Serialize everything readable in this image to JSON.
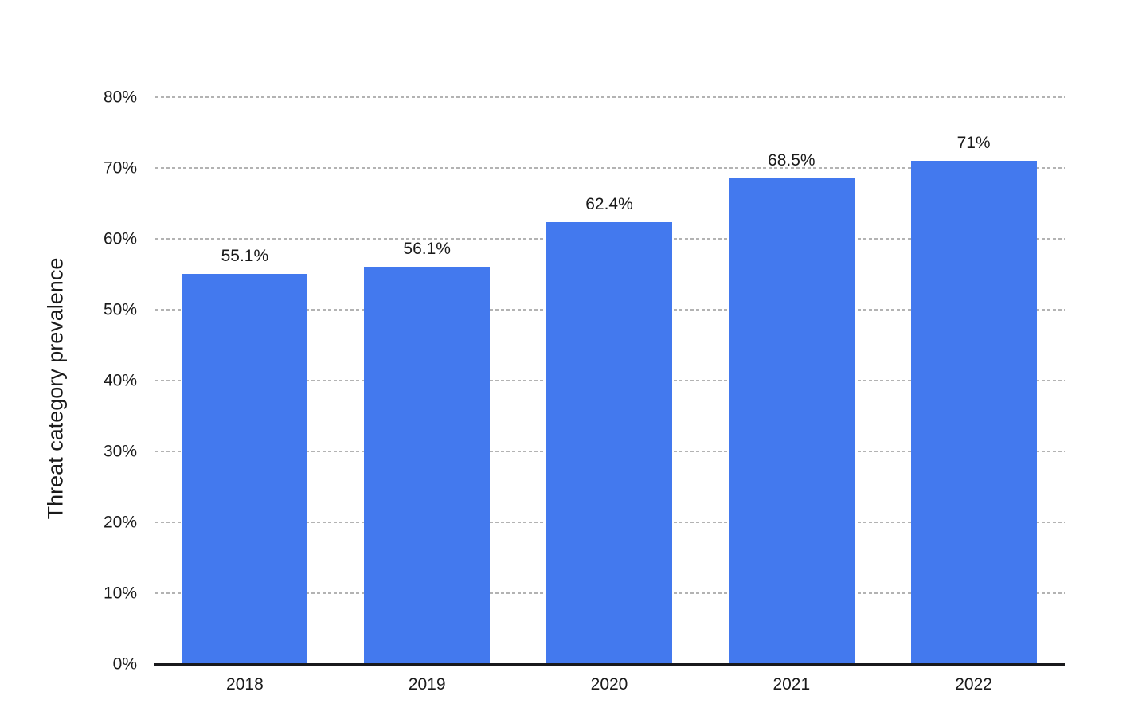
{
  "chart_data": {
    "type": "bar",
    "categories": [
      "2018",
      "2019",
      "2020",
      "2021",
      "2022"
    ],
    "values": [
      55.1,
      56.1,
      62.4,
      68.5,
      71
    ],
    "value_labels": [
      "55.1%",
      "56.1%",
      "62.4%",
      "68.5%",
      "71%"
    ],
    "ylabel": "Threat category prevalence",
    "ylim": [
      0,
      80
    ],
    "ytick_step": 10,
    "ytick_labels": [
      "0%",
      "10%",
      "20%",
      "30%",
      "40%",
      "50%",
      "60%",
      "70%",
      "80%"
    ],
    "grid": true,
    "legend": "none",
    "colors": {
      "bar": "#4379ee",
      "grid": "#b3b3b3",
      "axis": "#19191c",
      "text": "#1a1a1a",
      "background": "#ffffff"
    }
  }
}
